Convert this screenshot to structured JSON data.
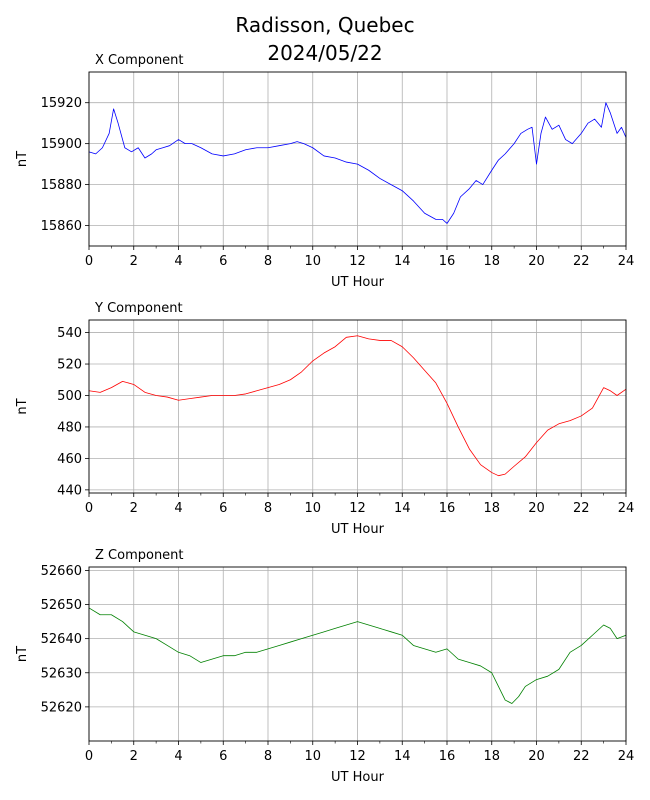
{
  "title_line1": "Radisson, Quebec",
  "title_line2": "2024/05/22",
  "chart_data": [
    {
      "type": "line",
      "title": "X Component",
      "xlabel": "UT Hour",
      "ylabel": "nT",
      "xlim": [
        0,
        24
      ],
      "ylim": [
        15850,
        15935
      ],
      "xticks": [
        0,
        2,
        4,
        6,
        8,
        10,
        12,
        14,
        16,
        18,
        20,
        22,
        24
      ],
      "yticks": [
        15860,
        15880,
        15900,
        15920
      ],
      "grid": true,
      "series": [
        {
          "color": "#0000ff",
          "x": [
            0,
            0.3,
            0.6,
            0.9,
            1.1,
            1.3,
            1.6,
            1.9,
            2.2,
            2.5,
            2.8,
            3.0,
            3.3,
            3.6,
            4.0,
            4.3,
            4.6,
            5.0,
            5.5,
            6.0,
            6.5,
            7.0,
            7.5,
            8.0,
            8.5,
            9.0,
            9.3,
            9.6,
            10.0,
            10.5,
            11.0,
            11.5,
            12.0,
            12.5,
            13.0,
            13.5,
            14.0,
            14.5,
            15.0,
            15.5,
            15.8,
            16.0,
            16.3,
            16.6,
            17.0,
            17.3,
            17.6,
            18.0,
            18.3,
            18.6,
            19.0,
            19.3,
            19.6,
            19.8,
            20.0,
            20.2,
            20.4,
            20.7,
            21.0,
            21.3,
            21.6,
            22.0,
            22.3,
            22.6,
            22.9,
            23.1,
            23.3,
            23.6,
            23.8,
            24.0
          ],
          "y": [
            15896,
            15895,
            15898,
            15905,
            15917,
            15910,
            15898,
            15896,
            15898,
            15893,
            15895,
            15897,
            15898,
            15899,
            15902,
            15900,
            15900,
            15898,
            15895,
            15894,
            15895,
            15897,
            15898,
            15898,
            15899,
            15900,
            15901,
            15900,
            15898,
            15894,
            15893,
            15891,
            15890,
            15887,
            15883,
            15880,
            15877,
            15872,
            15866,
            15863,
            15863,
            15861,
            15866,
            15874,
            15878,
            15882,
            15880,
            15887,
            15892,
            15895,
            15900,
            15905,
            15907,
            15908,
            15890,
            15905,
            15913,
            15907,
            15909,
            15902,
            15900,
            15905,
            15910,
            15912,
            15908,
            15920,
            15915,
            15905,
            15908,
            15903
          ]
        }
      ]
    },
    {
      "type": "line",
      "title": "Y Component",
      "xlabel": "UT Hour",
      "ylabel": "nT",
      "xlim": [
        0,
        24
      ],
      "ylim": [
        438,
        548
      ],
      "xticks": [
        0,
        2,
        4,
        6,
        8,
        10,
        12,
        14,
        16,
        18,
        20,
        22,
        24
      ],
      "yticks": [
        440,
        460,
        480,
        500,
        520,
        540
      ],
      "grid": true,
      "series": [
        {
          "color": "#ff0000",
          "x": [
            0,
            0.5,
            1.0,
            1.5,
            2.0,
            2.5,
            3.0,
            3.5,
            4.0,
            4.5,
            5.0,
            5.5,
            6.0,
            6.5,
            7.0,
            7.5,
            8.0,
            8.5,
            9.0,
            9.5,
            10.0,
            10.5,
            11.0,
            11.5,
            12.0,
            12.5,
            13.0,
            13.5,
            14.0,
            14.5,
            15.0,
            15.5,
            16.0,
            16.5,
            17.0,
            17.5,
            18.0,
            18.3,
            18.6,
            19.0,
            19.5,
            20.0,
            20.5,
            21.0,
            21.5,
            22.0,
            22.5,
            23.0,
            23.3,
            23.6,
            24.0
          ],
          "y": [
            503,
            502,
            505,
            509,
            507,
            502,
            500,
            499,
            497,
            498,
            499,
            500,
            500,
            500,
            501,
            503,
            505,
            507,
            510,
            515,
            522,
            527,
            531,
            537,
            538,
            536,
            535,
            535,
            531,
            524,
            516,
            508,
            495,
            480,
            466,
            456,
            451,
            449,
            450,
            455,
            461,
            470,
            478,
            482,
            484,
            487,
            492,
            505,
            503,
            500,
            504
          ]
        }
      ]
    },
    {
      "type": "line",
      "title": "Z Component",
      "xlabel": "UT Hour",
      "ylabel": "nT",
      "xlim": [
        0,
        24
      ],
      "ylim": [
        52610,
        52661
      ],
      "xticks": [
        0,
        2,
        4,
        6,
        8,
        10,
        12,
        14,
        16,
        18,
        20,
        22,
        24
      ],
      "yticks": [
        52620,
        52630,
        52640,
        52650,
        52660
      ],
      "grid": true,
      "series": [
        {
          "color": "#008000",
          "x": [
            0,
            0.5,
            1.0,
            1.5,
            2.0,
            2.5,
            3.0,
            3.5,
            4.0,
            4.5,
            5.0,
            5.5,
            6.0,
            6.5,
            7.0,
            7.5,
            8.0,
            8.5,
            9.0,
            9.5,
            10.0,
            10.5,
            11.0,
            11.5,
            12.0,
            12.5,
            13.0,
            13.5,
            14.0,
            14.5,
            15.0,
            15.5,
            16.0,
            16.5,
            17.0,
            17.5,
            18.0,
            18.3,
            18.6,
            18.9,
            19.2,
            19.5,
            20.0,
            20.5,
            21.0,
            21.5,
            22.0,
            22.5,
            23.0,
            23.3,
            23.6,
            24.0
          ],
          "y": [
            52649,
            52647,
            52647,
            52645,
            52642,
            52641,
            52640,
            52638,
            52636,
            52635,
            52633,
            52634,
            52635,
            52635,
            52636,
            52636,
            52637,
            52638,
            52639,
            52640,
            52641,
            52642,
            52643,
            52644,
            52645,
            52644,
            52643,
            52642,
            52641,
            52638,
            52637,
            52636,
            52637,
            52634,
            52633,
            52632,
            52630,
            52626,
            52622,
            52621,
            52623,
            52626,
            52628,
            52629,
            52631,
            52636,
            52638,
            52641,
            52644,
            52643,
            52640,
            52641
          ]
        }
      ]
    }
  ]
}
